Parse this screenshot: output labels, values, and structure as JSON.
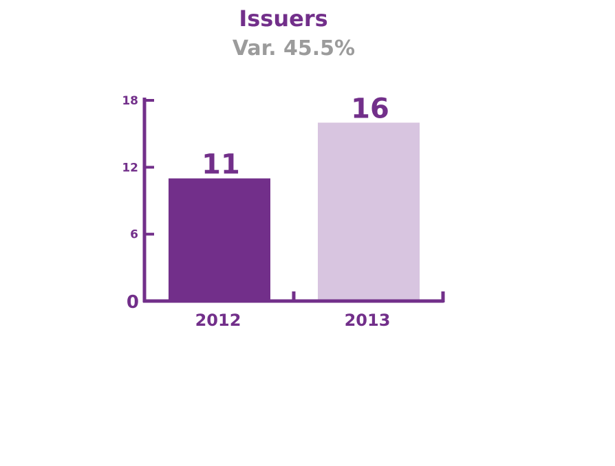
{
  "colors": {
    "axis": "#722f8a",
    "title": "#722f8a",
    "subtitle": "#9b9b9b",
    "bar_2012": "#722f8a",
    "bar_2013": "#d8c5e0",
    "text": "#722f8a"
  },
  "chart_data": {
    "type": "bar",
    "title": "Issuers",
    "subtitle": "Var. 45.5%",
    "categories": [
      "2012",
      "2013"
    ],
    "values": [
      11,
      16
    ],
    "value_labels": [
      "11",
      "16"
    ],
    "yticks": [
      "0",
      "6",
      "12",
      "18"
    ],
    "ylim": [
      0,
      18
    ],
    "grid": false,
    "legend": "none"
  }
}
